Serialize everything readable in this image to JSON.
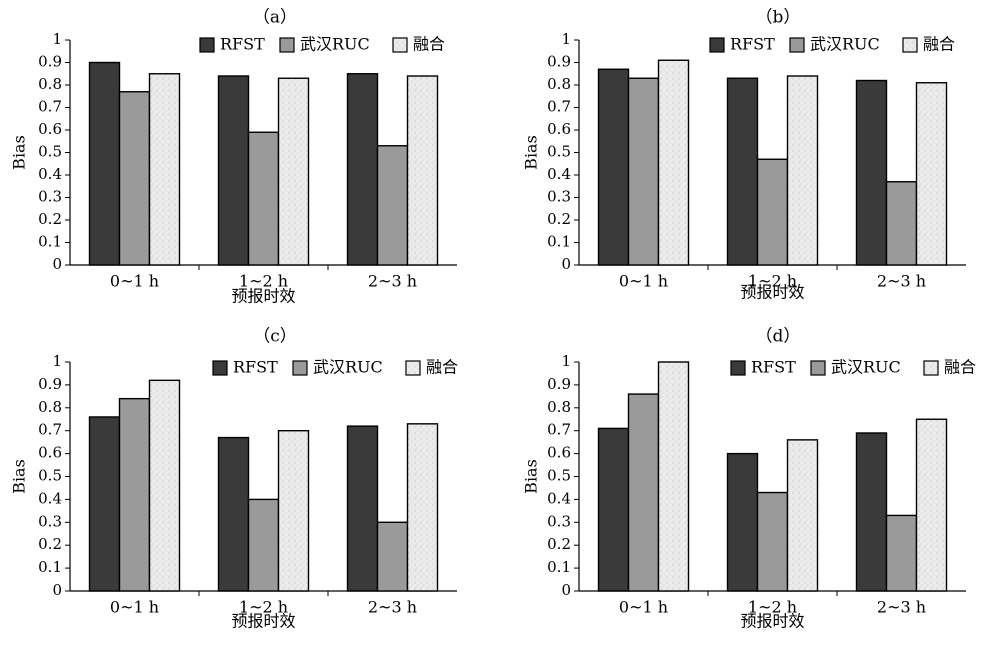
{
  "colors": {
    "rfst": "#3a3a3a",
    "ruc": "#9a9a9a",
    "fusion": "#ececec"
  },
  "chart_data": [
    {
      "type": "bar",
      "panel_label": "（a）",
      "categories": [
        "0~1 h",
        "1~2 h",
        "2~3 h"
      ],
      "xlabel": "预报时效",
      "ylabel": "Bias",
      "ylim": [
        0,
        1
      ],
      "yticks": [
        "0",
        "0.1",
        "0.2",
        "0.3",
        "0.4",
        "0.5",
        "0.6",
        "0.7",
        "0.8",
        "0.9",
        "1"
      ],
      "legend_position": "top-right",
      "series": [
        {
          "name": "RFST",
          "values": [
            0.9,
            0.84,
            0.85
          ]
        },
        {
          "name": "武汉RUC",
          "values": [
            0.77,
            0.59,
            0.53
          ]
        },
        {
          "name": "融合",
          "values": [
            0.85,
            0.83,
            0.84
          ]
        }
      ]
    },
    {
      "type": "bar",
      "panel_label": "（b）",
      "categories": [
        "0~1 h",
        "1~2 h",
        "2~3 h"
      ],
      "xlabel": "预报时效",
      "ylabel": "Bias",
      "ylim": [
        0,
        1
      ],
      "yticks": [
        "0",
        "0.1",
        "0.2",
        "0.3",
        "0.4",
        "0.5",
        "0.6",
        "0.7",
        "0.8",
        "0.9",
        "1"
      ],
      "legend_position": "top-right",
      "series": [
        {
          "name": "RFST",
          "values": [
            0.87,
            0.83,
            0.82
          ]
        },
        {
          "name": "武汉RUC",
          "values": [
            0.83,
            0.47,
            0.37
          ]
        },
        {
          "name": "融合",
          "values": [
            0.91,
            0.84,
            0.81
          ]
        }
      ]
    },
    {
      "type": "bar",
      "panel_label": "（c）",
      "categories": [
        "0~1 h",
        "1~2 h",
        "2~3 h"
      ],
      "xlabel": "预报时效",
      "ylabel": "Bias",
      "ylim": [
        0,
        1
      ],
      "yticks": [
        "0",
        "0.1",
        "0.2",
        "0.3",
        "0.4",
        "0.5",
        "0.6",
        "0.7",
        "0.8",
        "0.9",
        "1"
      ],
      "legend_position": "top-right",
      "series": [
        {
          "name": "RFST",
          "values": [
            0.76,
            0.67,
            0.72
          ]
        },
        {
          "name": "武汉RUC",
          "values": [
            0.84,
            0.4,
            0.3
          ]
        },
        {
          "name": "融合",
          "values": [
            0.92,
            0.7,
            0.73
          ]
        }
      ]
    },
    {
      "type": "bar",
      "panel_label": "（d）",
      "categories": [
        "0~1 h",
        "1~2 h",
        "2~3 h"
      ],
      "xlabel": "预报时效",
      "ylabel": "Bias",
      "ylim": [
        0,
        1
      ],
      "yticks": [
        "0",
        "0.1",
        "0.2",
        "0.3",
        "0.4",
        "0.5",
        "0.6",
        "0.7",
        "0.8",
        "0.9",
        "1"
      ],
      "legend_position": "top-right",
      "series": [
        {
          "name": "RFST",
          "values": [
            0.71,
            0.6,
            0.69
          ]
        },
        {
          "name": "武汉RUC",
          "values": [
            0.86,
            0.43,
            0.33
          ]
        },
        {
          "name": "融合",
          "values": [
            1.0,
            0.66,
            0.75
          ]
        }
      ]
    }
  ]
}
